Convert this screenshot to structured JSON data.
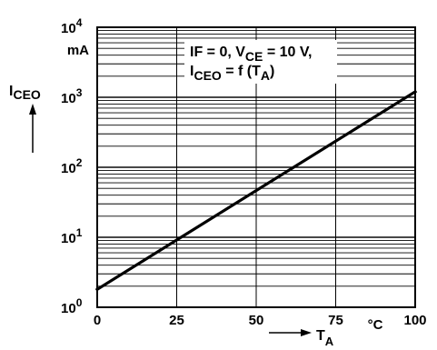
{
  "chart_data": {
    "type": "line",
    "x_ticks": [
      "0",
      "25",
      "50",
      "75",
      "100"
    ],
    "x_unit": "°C",
    "x_label": {
      "main": "T",
      "sub": "A"
    },
    "xlim": [
      0,
      100
    ],
    "y_ticks": [
      {
        "base": "10",
        "exp": "0"
      },
      {
        "base": "10",
        "exp": "1"
      },
      {
        "base": "10",
        "exp": "2"
      },
      {
        "base": "10",
        "exp": "3"
      },
      {
        "base": "10",
        "exp": "4"
      }
    ],
    "y_unit": "mA",
    "y_label": {
      "main": "I",
      "sub": "CEO"
    },
    "ylim": [
      1,
      10000
    ],
    "y_scale": "log",
    "grid": true,
    "annotation": {
      "line1_a": "IF = 0, V",
      "line1_sub": "CE",
      "line1_b": " = 10 V,",
      "line2_a": "I",
      "line2_sub": "CEO",
      "line2_b": " = f (T",
      "line2_sub2": "A",
      "line2_c": ")"
    },
    "series": [
      {
        "x": [
          0,
          100
        ],
        "y": [
          1.8,
          1200
        ]
      }
    ]
  }
}
